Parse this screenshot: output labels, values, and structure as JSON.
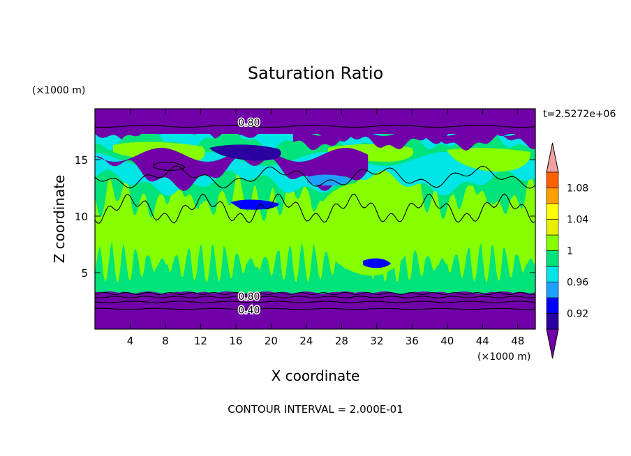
{
  "chart_data": {
    "type": "heatmap",
    "title": "Saturation Ratio",
    "time_label": "t=2.5272e+06",
    "xlabel": "X coordinate",
    "ylabel": "Z coordinate",
    "x_unit": "(×1000 m)",
    "z_unit": "(×1000 m)",
    "xlim": [
      0,
      50
    ],
    "zlim": [
      0,
      19.5
    ],
    "x_ticks": [
      "4",
      "8",
      "12",
      "16",
      "20",
      "24",
      "28",
      "32",
      "36",
      "40",
      "44",
      "48"
    ],
    "z_ticks": [
      "5",
      "10",
      "15"
    ],
    "x_tick_values": [
      4,
      8,
      12,
      16,
      20,
      24,
      28,
      32,
      36,
      40,
      44,
      48
    ],
    "z_tick_values": [
      5,
      10,
      15
    ],
    "grid": false,
    "colorbar": {
      "placement": "right",
      "labels": [
        "0.92",
        "0.96",
        "1",
        "1.04",
        "1.08"
      ],
      "label_values": [
        0.92,
        0.96,
        1.0,
        1.04,
        1.08
      ],
      "levels": [
        0.9,
        0.92,
        0.94,
        0.96,
        0.98,
        1.0,
        1.02,
        1.04,
        1.06,
        1.08,
        1.1
      ],
      "colors": [
        "#7000a8",
        "#2a00a0",
        "#0000ff",
        "#1ea0ff",
        "#00e5e5",
        "#00e27a",
        "#86ff00",
        "#e8ef00",
        "#ffff00",
        "#ffa000",
        "#ff6000",
        "#ff1a1a",
        "#f0a0a0"
      ]
    },
    "contour_labels": [
      {
        "text": "0.80",
        "x": 17.5,
        "z": 18.3
      },
      {
        "text": "0.80",
        "x": 17.5,
        "z": 2.9
      },
      {
        "text": "0.40",
        "x": 17.5,
        "z": 1.7
      }
    ],
    "footer": "CONTOUR INTERVAL = 2.000E-01"
  }
}
